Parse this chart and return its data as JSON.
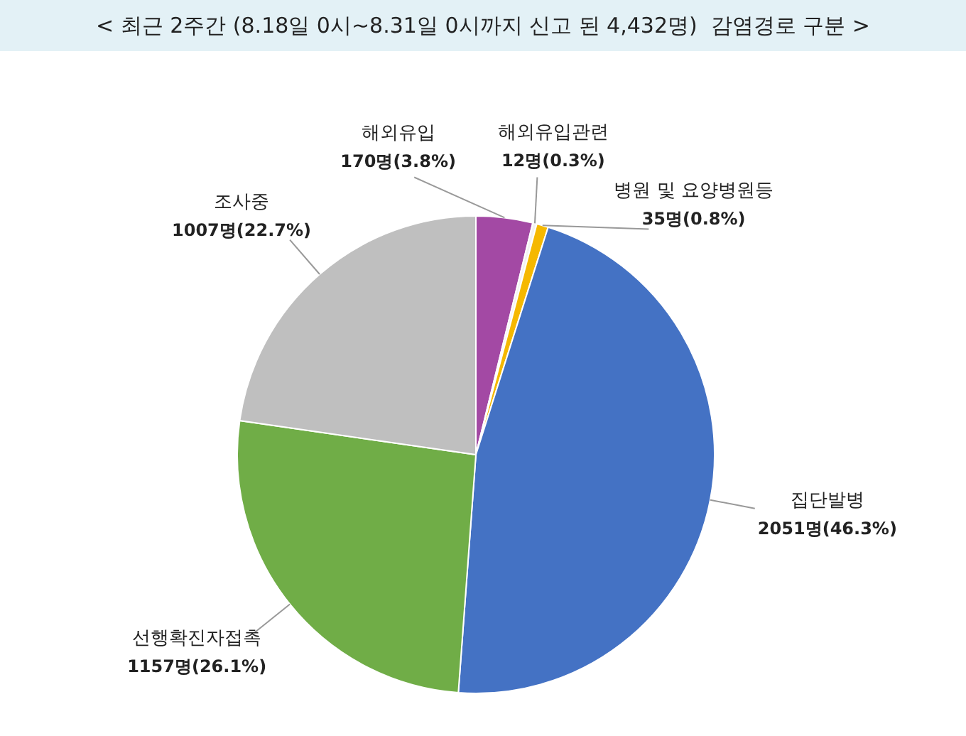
{
  "chart_data": {
    "type": "pie",
    "title": "< 최근 2주간 (8.18일 0시~8.31일 0시까지 신고 된 4,432명)  감염경로 구분 >",
    "categories": [
      "해외유입",
      "해외유입관련",
      "병원 및 요양병원등",
      "집단발병",
      "선행확진자접촉",
      "조사중"
    ],
    "values": [
      170,
      12,
      35,
      2051,
      1157,
      1007
    ],
    "colors": [
      "#a349a4",
      "#f2f2f2",
      "#f5b800",
      "#4472c4",
      "#70ad47",
      "#bfbfbf"
    ],
    "value_labels": [
      "170명(3.8%)",
      "12명(0.3%)",
      "35명(0.8%)",
      "2051명(46.3%)",
      "1157명(26.1%)",
      "1007명(22.7%)"
    ]
  }
}
